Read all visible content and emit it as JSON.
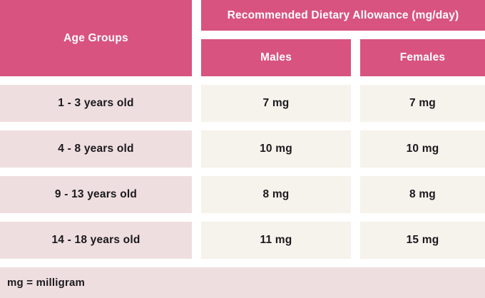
{
  "colors": {
    "header_pink": "#d8537f",
    "row_pink": "#efdee0",
    "value_cream": "#f6f2ec",
    "header_text": "#ffffff",
    "body_text": "#1a191d",
    "background": "#ffffff"
  },
  "table": {
    "age_column_header": "Age Groups",
    "spanning_header": "Recommended Dietary Allowance (mg/day)",
    "sub_headers": {
      "males": "Males",
      "females": "Females"
    },
    "rows": [
      {
        "age": "1 - 3 years old",
        "males": "7 mg",
        "females": "7 mg"
      },
      {
        "age": "4 - 8 years old",
        "males": "10 mg",
        "females": "10 mg"
      },
      {
        "age": "9 - 13 years old",
        "males": "8 mg",
        "females": "8 mg"
      },
      {
        "age": "14 - 18 years old",
        "males": "11 mg",
        "females": "15 mg"
      }
    ],
    "footnote": "mg = milligram"
  },
  "chart_data": {
    "type": "table",
    "title": "Recommended Dietary Allowance (mg/day)",
    "row_header_label": "Age Groups",
    "categories": [
      "1 - 3 years old",
      "4 - 8 years old",
      "9 - 13 years old",
      "14 - 18 years old"
    ],
    "series": [
      {
        "name": "Males",
        "values": [
          7,
          10,
          8,
          11
        ]
      },
      {
        "name": "Females",
        "values": [
          7,
          10,
          8,
          15
        ]
      }
    ],
    "unit": "mg/day",
    "footnote": "mg = milligram"
  }
}
